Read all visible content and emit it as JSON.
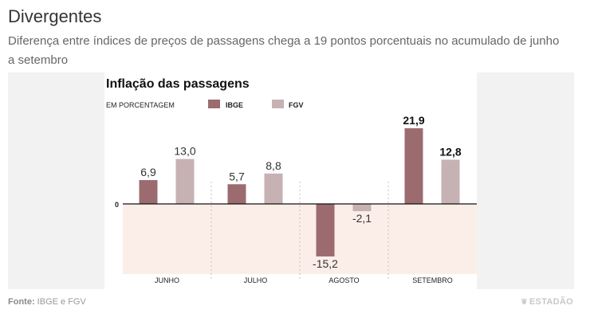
{
  "header": {
    "title": "Divergentes",
    "subtitle": "Diferença entre índices de preços de passagens chega a 19 pontos porcentuais no acumulado de junho a setembro"
  },
  "footer": {
    "source_label": "Fonte:",
    "source_text": "IBGE e FGV",
    "brand": "ESTADÃO",
    "brand_icon": "estadao-logo-icon"
  },
  "colors": {
    "ibge": "#9c6b70",
    "fgv": "#c7b2b3",
    "negative_area": "#fbeee9",
    "plot_bg": "#ffffff",
    "panel_bg": "#f2f2f2"
  },
  "chart_data": {
    "type": "bar",
    "title": "Inflação das passagens",
    "unit_label": "EM PORCENTAGEM",
    "categories": [
      "JUNHO",
      "JULHO",
      "AGOSTO",
      "SETEMBRO"
    ],
    "series": [
      {
        "name": "IBGE",
        "values": [
          6.9,
          5.7,
          -15.2,
          21.9
        ],
        "labels": [
          "6,9",
          "5,7",
          "-15,2",
          "21,9"
        ]
      },
      {
        "name": "FGV",
        "values": [
          13.0,
          8.8,
          -2.1,
          12.8
        ],
        "labels": [
          "13,0",
          "8,8",
          "-2,1",
          "12,8"
        ]
      }
    ],
    "zero_label": "0",
    "ylim": [
      -15.2,
      21.9
    ],
    "bold_labels_category": "SETEMBRO",
    "legend_position": "top-left",
    "grid": false
  }
}
